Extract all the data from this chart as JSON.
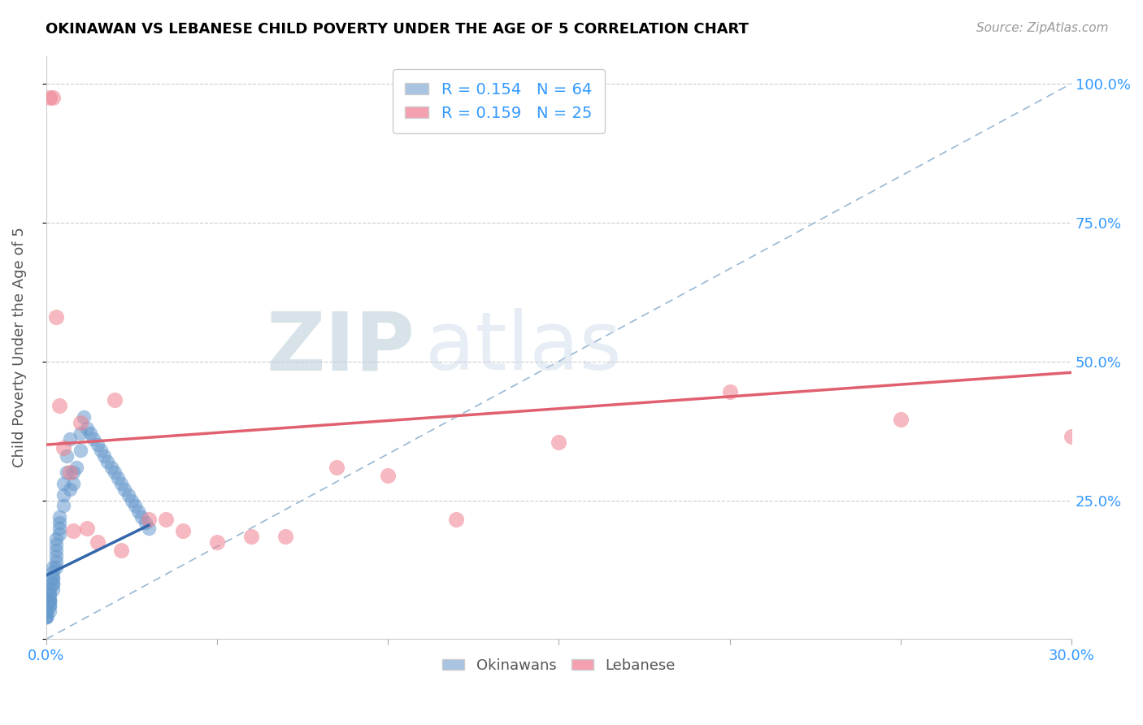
{
  "title": "OKINAWAN VS LEBANESE CHILD POVERTY UNDER THE AGE OF 5 CORRELATION CHART",
  "source": "Source: ZipAtlas.com",
  "ylabel": "Child Poverty Under the Age of 5",
  "ytick_labels": [
    "",
    "25.0%",
    "50.0%",
    "75.0%",
    "100.0%"
  ],
  "ytick_vals": [
    0.0,
    0.25,
    0.5,
    0.75,
    1.0
  ],
  "legend_bottom": [
    "Okinawans",
    "Lebanese"
  ],
  "okinawan_color": "#6699cc",
  "lebanese_color": "#f08090",
  "okinawan_line_color": "#3366aa",
  "lebanese_line_color": "#e06070",
  "diagonal_line_color": "#99b8d4",
  "watermark_left": "ZIP",
  "watermark_right": "atlas",
  "xmin": 0.0,
  "xmax": 0.3,
  "ymin": 0.0,
  "ymax": 1.05,
  "ok_x": [
    0.0,
    0.0,
    0.0,
    0.0,
    0.0,
    0.0,
    0.001,
    0.001,
    0.001,
    0.001,
    0.001,
    0.001,
    0.001,
    0.001,
    0.001,
    0.002,
    0.002,
    0.002,
    0.002,
    0.002,
    0.002,
    0.002,
    0.003,
    0.003,
    0.003,
    0.003,
    0.003,
    0.003,
    0.004,
    0.004,
    0.004,
    0.004,
    0.005,
    0.005,
    0.005,
    0.006,
    0.006,
    0.007,
    0.007,
    0.008,
    0.008,
    0.009,
    0.01,
    0.01,
    0.011,
    0.012,
    0.013,
    0.014,
    0.015,
    0.016,
    0.017,
    0.018,
    0.019,
    0.02,
    0.021,
    0.022,
    0.023,
    0.024,
    0.025,
    0.026,
    0.027,
    0.028,
    0.029,
    0.03
  ],
  "ok_y": [
    0.04,
    0.04,
    0.04,
    0.05,
    0.05,
    0.05,
    0.05,
    0.06,
    0.06,
    0.07,
    0.07,
    0.07,
    0.08,
    0.08,
    0.09,
    0.09,
    0.1,
    0.1,
    0.11,
    0.11,
    0.12,
    0.13,
    0.13,
    0.14,
    0.15,
    0.16,
    0.17,
    0.18,
    0.19,
    0.2,
    0.21,
    0.22,
    0.24,
    0.26,
    0.28,
    0.3,
    0.33,
    0.36,
    0.27,
    0.3,
    0.28,
    0.31,
    0.34,
    0.37,
    0.4,
    0.38,
    0.37,
    0.36,
    0.35,
    0.34,
    0.33,
    0.32,
    0.31,
    0.3,
    0.29,
    0.28,
    0.27,
    0.26,
    0.25,
    0.24,
    0.23,
    0.22,
    0.21,
    0.2
  ],
  "lb_x": [
    0.001,
    0.002,
    0.003,
    0.004,
    0.005,
    0.007,
    0.008,
    0.01,
    0.012,
    0.015,
    0.02,
    0.022,
    0.03,
    0.035,
    0.04,
    0.05,
    0.06,
    0.07,
    0.085,
    0.1,
    0.12,
    0.15,
    0.2,
    0.25,
    0.3
  ],
  "lb_y": [
    0.975,
    0.975,
    0.58,
    0.42,
    0.345,
    0.3,
    0.195,
    0.39,
    0.2,
    0.175,
    0.43,
    0.16,
    0.215,
    0.215,
    0.195,
    0.175,
    0.185,
    0.185,
    0.31,
    0.295,
    0.215,
    0.355,
    0.445,
    0.395,
    0.365
  ],
  "ok_trend_x": [
    0.0,
    0.03
  ],
  "ok_trend_y": [
    0.115,
    0.205
  ],
  "lb_trend_x": [
    0.0,
    0.3
  ],
  "lb_trend_y": [
    0.35,
    0.48
  ]
}
